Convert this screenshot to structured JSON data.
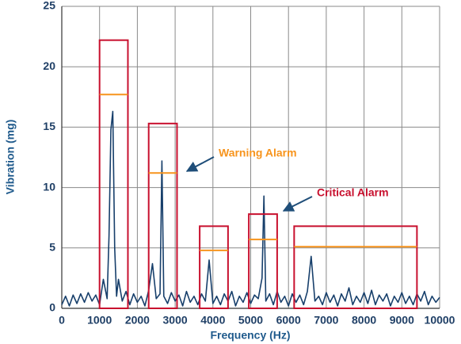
{
  "chart_data": {
    "type": "line",
    "xlabel": "Frequency (Hz)",
    "ylabel": "Vibration (mg)",
    "x": [
      0,
      100,
      200,
      300,
      400,
      500,
      600,
      700,
      800,
      900,
      1000,
      1100,
      1200,
      1250,
      1300,
      1350,
      1400,
      1450,
      1500,
      1600,
      1700,
      1800,
      1900,
      2000,
      2100,
      2200,
      2300,
      2400,
      2500,
      2600,
      2650,
      2700,
      2800,
      2900,
      3000,
      3100,
      3200,
      3300,
      3400,
      3500,
      3600,
      3700,
      3800,
      3900,
      4000,
      4100,
      4200,
      4300,
      4400,
      4500,
      4600,
      4700,
      4800,
      4900,
      5000,
      5100,
      5200,
      5300,
      5350,
      5400,
      5500,
      5600,
      5700,
      5800,
      5900,
      6000,
      6100,
      6200,
      6300,
      6400,
      6500,
      6600,
      6700,
      6800,
      6900,
      7000,
      7100,
      7200,
      7300,
      7400,
      7500,
      7600,
      7700,
      7800,
      7900,
      8000,
      8100,
      8200,
      8300,
      8400,
      8500,
      8600,
      8700,
      8800,
      8900,
      9000,
      9100,
      9200,
      9300,
      9400,
      9500,
      9600,
      9700,
      9800,
      9900,
      10000
    ],
    "series": [
      {
        "color": "#173f6b",
        "values": [
          0.3,
          1.0,
          0.2,
          1.1,
          0.4,
          1.2,
          0.5,
          1.3,
          0.6,
          1.1,
          0.3,
          2.4,
          0.8,
          6.0,
          14.8,
          16.3,
          5.0,
          1.0,
          2.4,
          0.6,
          1.4,
          0.3,
          1.2,
          0.5,
          1.0,
          0.2,
          1.5,
          3.7,
          0.8,
          1.2,
          12.2,
          1.0,
          0.4,
          1.3,
          0.6,
          1.1,
          0.2,
          1.4,
          0.5,
          1.0,
          0.3,
          1.2,
          0.6,
          4.0,
          0.4,
          1.0,
          0.3,
          1.2,
          0.6,
          1.4,
          0.2,
          1.0,
          0.5,
          1.3,
          0.4,
          1.1,
          0.8,
          2.5,
          9.3,
          0.6,
          1.2,
          0.3,
          1.4,
          0.5,
          1.0,
          0.2,
          1.2,
          0.5,
          1.1,
          0.3,
          1.4,
          4.3,
          0.6,
          1.0,
          0.3,
          1.3,
          0.5,
          1.1,
          0.2,
          1.2,
          0.6,
          1.7,
          0.3,
          1.0,
          0.5,
          1.3,
          0.4,
          1.5,
          0.3,
          1.1,
          0.6,
          1.2,
          0.2,
          1.0,
          0.5,
          1.3,
          0.4,
          1.0,
          0.3,
          1.2,
          0.6,
          1.4,
          0.3,
          1.0,
          0.5,
          0.9
        ]
      }
    ],
    "xlim": [
      0,
      10000
    ],
    "xticks": [
      0,
      1000,
      2000,
      3000,
      4000,
      5000,
      6000,
      7000,
      8000,
      9000,
      10000
    ],
    "ylim": [
      0,
      25
    ],
    "yticks": [
      0,
      5,
      10,
      15,
      20,
      25
    ],
    "grid": true,
    "critical_color": "#c8102e",
    "warning_color": "#f7941d",
    "alarm_bands": [
      {
        "x": [
          1000,
          1750
        ],
        "critical": 22.2,
        "warning": 17.7
      },
      {
        "x": [
          2300,
          3050
        ],
        "critical": 15.3,
        "warning": 11.2
      },
      {
        "x": [
          3650,
          4400
        ],
        "critical": 6.8,
        "warning": 4.8
      },
      {
        "x": [
          4950,
          5700
        ],
        "critical": 7.8,
        "warning": 5.7
      },
      {
        "x": [
          6150,
          9400
        ],
        "critical": 6.8,
        "warning": 5.1
      }
    ],
    "warning_label": "Warning Alarm",
    "critical_label": "Critical Alarm"
  }
}
